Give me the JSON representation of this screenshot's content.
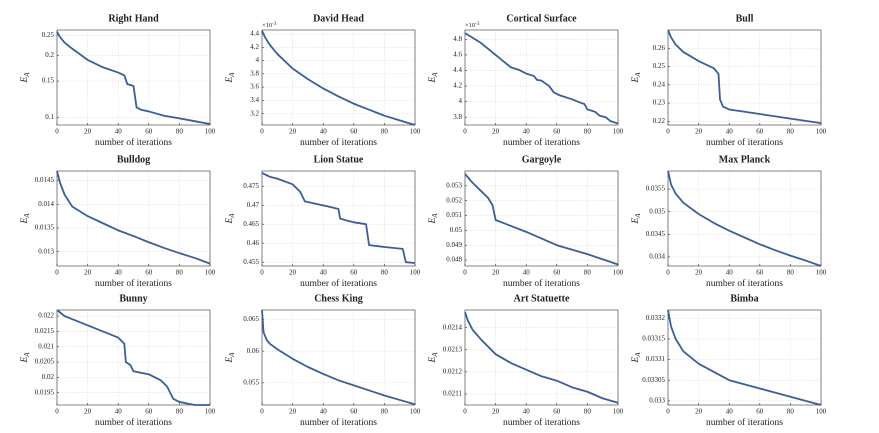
{
  "chart_data": [
    {
      "type": "line",
      "title": "Right Hand",
      "xlabel": "number of iterations",
      "ylabel": "EA",
      "color": "#3b5e98",
      "grid": true,
      "log_y": true,
      "x": [
        0,
        2,
        5,
        10,
        20,
        30,
        40,
        44,
        46,
        50,
        52,
        55,
        60,
        70,
        80,
        90,
        100
      ],
      "values": [
        0.26,
        0.245,
        0.23,
        0.215,
        0.19,
        0.175,
        0.165,
        0.16,
        0.145,
        0.142,
        0.112,
        0.109,
        0.107,
        0.102,
        0.099,
        0.096,
        0.093
      ],
      "xlim": [
        0,
        100
      ],
      "ylim": [
        0.092,
        0.265
      ],
      "xticks": [
        0,
        20,
        40,
        60,
        80,
        100
      ],
      "yticks": [
        0.1,
        0.15,
        0.2,
        0.25
      ]
    },
    {
      "type": "line",
      "title": "David Head",
      "xlabel": "number of iterations",
      "ylabel": "EA",
      "y_multiplier": "×10-3",
      "color": "#3b5e98",
      "grid": true,
      "x": [
        0,
        2,
        5,
        10,
        20,
        30,
        40,
        50,
        60,
        70,
        80,
        90,
        100
      ],
      "values": [
        4.45,
        4.35,
        4.24,
        4.1,
        3.88,
        3.72,
        3.58,
        3.46,
        3.35,
        3.26,
        3.17,
        3.1,
        3.03
      ],
      "xlim": [
        0,
        100
      ],
      "ylim": [
        3.03,
        4.46
      ],
      "xticks": [
        0,
        20,
        40,
        60,
        80,
        100
      ],
      "yticks": [
        3.2,
        3.4,
        3.6,
        3.8,
        4,
        4.2,
        4.4
      ]
    },
    {
      "type": "line",
      "title": "Cortical Surface",
      "xlabel": "number of iterations",
      "ylabel": "EA",
      "y_multiplier": "×10-3",
      "color": "#3b5e98",
      "grid": true,
      "x": [
        0,
        5,
        10,
        15,
        20,
        25,
        30,
        35,
        40,
        45,
        47,
        50,
        55,
        58,
        62,
        70,
        75,
        78,
        80,
        85,
        88,
        92,
        95,
        100
      ],
      "values": [
        4.88,
        4.82,
        4.76,
        4.68,
        4.6,
        4.52,
        4.44,
        4.41,
        4.36,
        4.33,
        4.28,
        4.27,
        4.2,
        4.12,
        4.08,
        4.03,
        3.99,
        3.97,
        3.9,
        3.87,
        3.82,
        3.8,
        3.75,
        3.72
      ],
      "xlim": [
        0,
        100
      ],
      "ylim": [
        3.7,
        4.92
      ],
      "xticks": [
        0,
        20,
        40,
        60,
        80,
        100
      ],
      "yticks": [
        3.8,
        4,
        4.2,
        4.4,
        4.6,
        4.8
      ]
    },
    {
      "type": "line",
      "title": "Bull",
      "xlabel": "number of iterations",
      "ylabel": "EA",
      "color": "#3b5e98",
      "grid": true,
      "x": [
        0,
        2,
        5,
        10,
        20,
        30,
        33,
        34,
        36,
        40,
        60,
        80,
        100
      ],
      "values": [
        0.27,
        0.266,
        0.262,
        0.258,
        0.253,
        0.249,
        0.246,
        0.232,
        0.228,
        0.2265,
        0.224,
        0.2215,
        0.219
      ],
      "xlim": [
        0,
        100
      ],
      "ylim": [
        0.218,
        0.27
      ],
      "xticks": [
        0,
        20,
        40,
        60,
        80,
        100
      ],
      "yticks": [
        0.22,
        0.23,
        0.24,
        0.25,
        0.26
      ]
    },
    {
      "type": "line",
      "title": "Bulldog",
      "xlabel": "number of iterations",
      "ylabel": "EA",
      "color": "#3b5e98",
      "grid": true,
      "x": [
        0,
        2,
        5,
        10,
        20,
        30,
        40,
        50,
        60,
        70,
        80,
        90,
        100
      ],
      "values": [
        0.0147,
        0.01445,
        0.0142,
        0.01395,
        0.01375,
        0.0136,
        0.01345,
        0.01333,
        0.0132,
        0.01308,
        0.01297,
        0.01287,
        0.01275
      ],
      "xlim": [
        0,
        100
      ],
      "ylim": [
        0.0127,
        0.0147
      ],
      "xticks": [
        0,
        20,
        40,
        60,
        80,
        100
      ],
      "yticks": [
        0.013,
        0.0135,
        0.014,
        0.0145
      ]
    },
    {
      "type": "line",
      "title": "Lion Statue",
      "xlabel": "number of iterations",
      "ylabel": "EA",
      "color": "#3b5e98",
      "grid": true,
      "x": [
        0,
        5,
        10,
        20,
        25,
        28,
        45,
        50,
        51,
        55,
        60,
        68,
        70,
        80,
        92,
        94,
        100
      ],
      "values": [
        0.4785,
        0.4775,
        0.477,
        0.4755,
        0.4735,
        0.471,
        0.4695,
        0.469,
        0.4665,
        0.466,
        0.4655,
        0.465,
        0.4595,
        0.459,
        0.4585,
        0.455,
        0.4548
      ],
      "xlim": [
        0,
        100
      ],
      "ylim": [
        0.454,
        0.479
      ],
      "xticks": [
        0,
        20,
        40,
        60,
        80,
        100
      ],
      "yticks": [
        0.455,
        0.46,
        0.465,
        0.47,
        0.475
      ]
    },
    {
      "type": "line",
      "title": "Gargoyle",
      "xlabel": "number of iterations",
      "ylabel": "EA",
      "color": "#3b5e98",
      "grid": true,
      "x": [
        0,
        5,
        10,
        15,
        18,
        20,
        25,
        40,
        60,
        80,
        100
      ],
      "values": [
        0.0538,
        0.0532,
        0.0527,
        0.0522,
        0.0517,
        0.0507,
        0.0505,
        0.0499,
        0.049,
        0.0484,
        0.0477
      ],
      "xlim": [
        0,
        100
      ],
      "ylim": [
        0.0476,
        0.054
      ],
      "xticks": [
        0,
        20,
        40,
        60,
        80,
        100
      ],
      "yticks": [
        0.048,
        0.049,
        0.05,
        0.051,
        0.052,
        0.053
      ]
    },
    {
      "type": "line",
      "title": "Max Planck",
      "xlabel": "number of iterations",
      "ylabel": "EA",
      "color": "#3b5e98",
      "grid": true,
      "x": [
        0,
        2,
        5,
        10,
        20,
        30,
        40,
        50,
        60,
        70,
        80,
        90,
        100
      ],
      "values": [
        0.0359,
        0.0356,
        0.0354,
        0.0352,
        0.03495,
        0.03475,
        0.03458,
        0.03443,
        0.03428,
        0.03415,
        0.03403,
        0.03392,
        0.0338
      ],
      "xlim": [
        0,
        100
      ],
      "ylim": [
        0.0338,
        0.0359
      ],
      "xticks": [
        0,
        20,
        40,
        60,
        80,
        100
      ],
      "yticks": [
        0.034,
        0.0345,
        0.035,
        0.0355
      ]
    },
    {
      "type": "line",
      "title": "Bunny",
      "xlabel": "number of iterations",
      "ylabel": "EA",
      "color": "#3b5e98",
      "grid": true,
      "x": [
        0,
        5,
        10,
        20,
        30,
        40,
        44,
        45,
        48,
        50,
        60,
        68,
        72,
        76,
        80,
        90,
        100
      ],
      "values": [
        0.0222,
        0.022,
        0.0219,
        0.0217,
        0.0215,
        0.0213,
        0.0211,
        0.0205,
        0.0204,
        0.0202,
        0.0201,
        0.0199,
        0.0197,
        0.0193,
        0.0192,
        0.0191,
        0.0191
      ],
      "xlim": [
        0,
        100
      ],
      "ylim": [
        0.0191,
        0.0222
      ],
      "xticks": [
        0,
        20,
        40,
        60,
        80,
        100
      ],
      "yticks": [
        0.0195,
        0.02,
        0.0205,
        0.021,
        0.0215,
        0.022
      ]
    },
    {
      "type": "line",
      "title": "Chess King",
      "xlabel": "number of iterations",
      "ylabel": "EA",
      "color": "#3b5e98",
      "grid": true,
      "x": [
        0,
        1,
        3,
        5,
        10,
        20,
        30,
        40,
        50,
        60,
        70,
        80,
        90,
        100
      ],
      "values": [
        0.0665,
        0.063,
        0.0618,
        0.0612,
        0.0603,
        0.0588,
        0.0575,
        0.0564,
        0.0554,
        0.0546,
        0.0538,
        0.053,
        0.0523,
        0.0516
      ],
      "xlim": [
        0,
        100
      ],
      "ylim": [
        0.0515,
        0.0665
      ],
      "xticks": [
        0,
        20,
        40,
        60,
        80,
        100
      ],
      "yticks": [
        0.055,
        0.06,
        0.065
      ]
    },
    {
      "type": "line",
      "title": "Art Statuette",
      "xlabel": "number of iterations",
      "ylabel": "EA",
      "color": "#3b5e98",
      "grid": true,
      "x": [
        0,
        2,
        5,
        10,
        20,
        30,
        40,
        50,
        60,
        70,
        80,
        90,
        100
      ],
      "values": [
        0.02147,
        0.02143,
        0.02139,
        0.02135,
        0.02128,
        0.02124,
        0.02121,
        0.02118,
        0.02116,
        0.02113,
        0.02111,
        0.02108,
        0.02106
      ],
      "xlim": [
        0,
        100
      ],
      "ylim": [
        0.02105,
        0.02148
      ],
      "xticks": [
        0,
        20,
        40,
        60,
        80,
        100
      ],
      "yticks": [
        0.0211,
        0.0212,
        0.0213,
        0.0214
      ]
    },
    {
      "type": "line",
      "title": "Bimba",
      "xlabel": "number of iterations",
      "ylabel": "EA",
      "color": "#3b5e98",
      "grid": true,
      "x": [
        0,
        2,
        5,
        10,
        20,
        30,
        40,
        50,
        60,
        70,
        80,
        90,
        100
      ],
      "values": [
        0.03322,
        0.03318,
        0.03315,
        0.03312,
        0.03309,
        0.03307,
        0.03305,
        0.03304,
        0.03303,
        0.03302,
        0.03301,
        0.033,
        0.03299
      ],
      "xlim": [
        0,
        100
      ],
      "ylim": [
        0.03299,
        0.03322
      ],
      "xticks": [
        0,
        20,
        40,
        60,
        80,
        100
      ],
      "yticks": [
        0.033,
        0.03305,
        0.0331,
        0.03315,
        0.0332
      ]
    }
  ]
}
